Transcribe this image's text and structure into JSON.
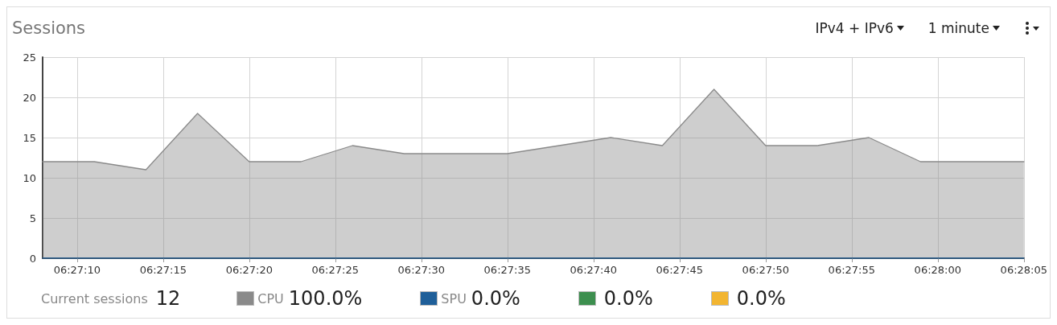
{
  "chart_data": {
    "type": "area",
    "title": "Sessions",
    "marker": "none",
    "line_style": "solid",
    "grid": true,
    "legend": "bottom",
    "x": [
      6.452222,
      6.453056,
      6.453889,
      6.454722,
      6.455556,
      6.456389,
      6.457222,
      6.458056,
      6.458889,
      6.459722,
      6.460556,
      6.461389,
      6.462222,
      6.463056,
      6.463889,
      6.464722,
      6.465556,
      6.466389,
      6.467222,
      6.468056
    ],
    "xlim": [
      6.452222,
      6.468056
    ],
    "xticks": [
      {
        "value": 6.452778,
        "label": "06:27:10"
      },
      {
        "value": 6.454167,
        "label": "06:27:15"
      },
      {
        "value": 6.455556,
        "label": "06:27:20"
      },
      {
        "value": 6.456944,
        "label": "06:27:25"
      },
      {
        "value": 6.458333,
        "label": "06:27:30"
      },
      {
        "value": 6.459722,
        "label": "06:27:35"
      },
      {
        "value": 6.461111,
        "label": "06:27:40"
      },
      {
        "value": 6.4625,
        "label": "06:27:45"
      },
      {
        "value": 6.463889,
        "label": "06:27:50"
      },
      {
        "value": 6.465278,
        "label": "06:27:55"
      },
      {
        "value": 6.466667,
        "label": "06:28:00"
      },
      {
        "value": 6.468056,
        "label": "06:28:05"
      }
    ],
    "ylim": [
      0,
      25
    ],
    "yticks": [
      0,
      5,
      10,
      15,
      20,
      25
    ],
    "series": [
      {
        "name": "CPU",
        "color": "#8a8a8a",
        "values": [
          12,
          12,
          11,
          18,
          12,
          12,
          14,
          13,
          13,
          13,
          14,
          15,
          14,
          21,
          14,
          14,
          15,
          12,
          12,
          12
        ]
      },
      {
        "name": "SPU",
        "type": "line",
        "color": "#1f5f99",
        "values": [
          0,
          0,
          0,
          0,
          0,
          0,
          0,
          0,
          0,
          0,
          0,
          0,
          0,
          0,
          0,
          0,
          0,
          0,
          0,
          0
        ]
      },
      {
        "type": "line",
        "color": "#3d8f4f",
        "values": [
          null,
          null,
          null,
          null,
          null,
          null,
          null,
          null,
          null,
          null,
          null,
          null,
          null,
          null,
          null,
          null,
          null,
          null,
          null,
          null
        ]
      },
      {
        "type": "line",
        "color": "#f2b531",
        "values": [
          null,
          null,
          null,
          null,
          null,
          null,
          null,
          null,
          null,
          null,
          null,
          null,
          null,
          null,
          null,
          null,
          null,
          null,
          null,
          null
        ]
      }
    ],
    "annotations": [
      "IPv4 + IPv6",
      "1 minute",
      "Current sessions",
      "12",
      "100.0%",
      "0.0%",
      "0.0%",
      "0.0%"
    ]
  }
}
